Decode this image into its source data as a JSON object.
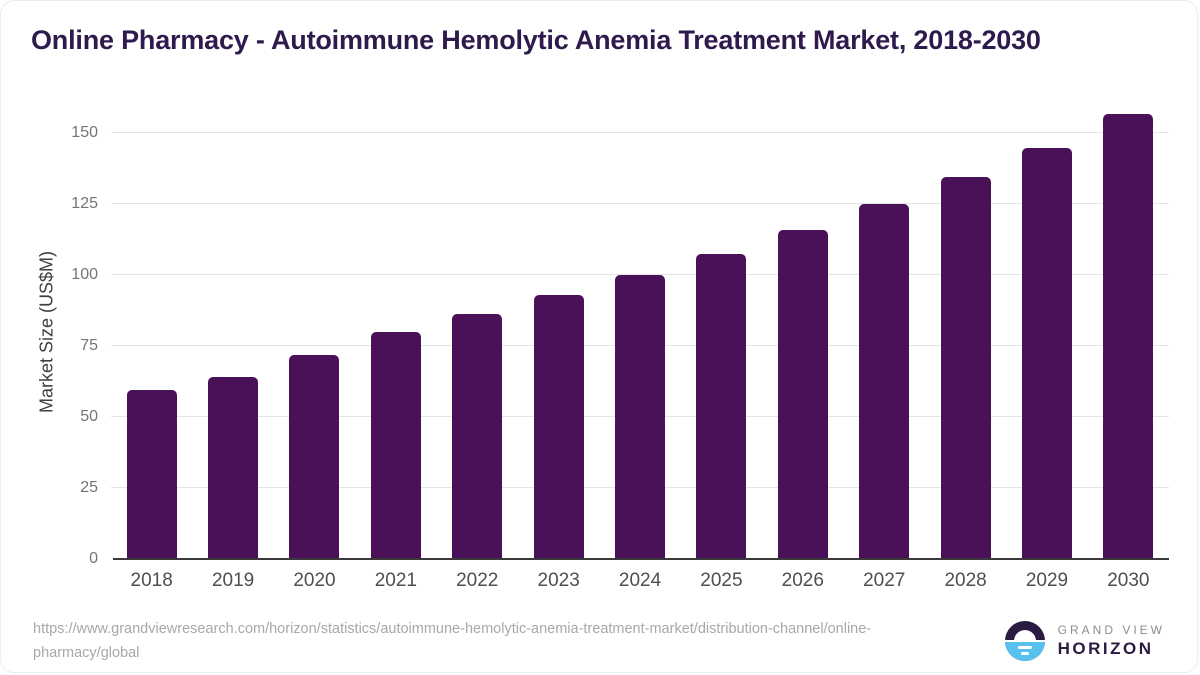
{
  "header": {
    "title": "Online Pharmacy - Autoimmune Hemolytic Anemia Treatment Market, 2018-2030"
  },
  "chart_data": {
    "type": "bar",
    "title": "Online Pharmacy - Autoimmune Hemolytic Anemia Treatment Market, 2018-2030",
    "categories": [
      "2018",
      "2019",
      "2020",
      "2021",
      "2022",
      "2023",
      "2024",
      "2025",
      "2026",
      "2027",
      "2028",
      "2029",
      "2030"
    ],
    "values": [
      59.5,
      64,
      72,
      80,
      86.5,
      93,
      100,
      107.5,
      116,
      125,
      134.5,
      145,
      157
    ],
    "xlabel": "",
    "ylabel": "Market Size (US$M)",
    "ylim": [
      0,
      160
    ],
    "yticks": [
      0,
      25,
      50,
      75,
      100,
      125,
      150
    ],
    "grid": true,
    "legend": false,
    "bar_color": "#4a1159"
  },
  "colors": {
    "title_text": "#2f1a4d",
    "bar": "#4a1159",
    "gridline": "#e4e4e4",
    "axis_line": "#3a3a3a",
    "logo_purple": "#2b1b43",
    "logo_blue": "#58c1ed"
  },
  "footer": {
    "source_url": "https://www.grandviewresearch.com/horizon/statistics/autoimmune-hemolytic-anemia-treatment-market/distribution-channel/online-pharmacy/global",
    "brand_line1": "GRAND VIEW",
    "brand_line2": "HORIZON"
  }
}
